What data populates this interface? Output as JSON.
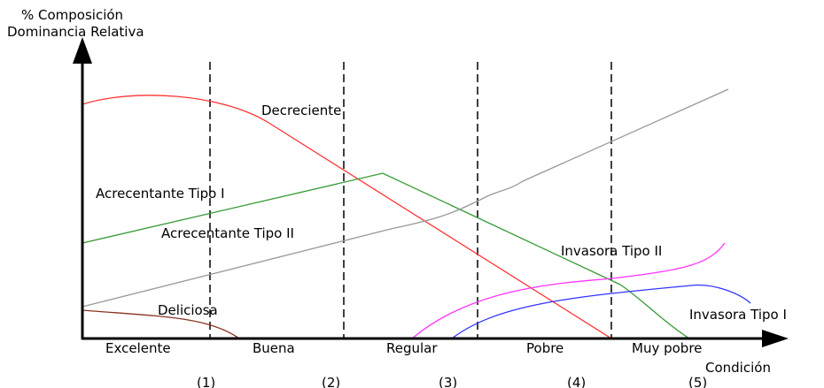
{
  "y_axis": {
    "title_line1": "% Composición",
    "title_line2": "Dominancia Relativa"
  },
  "x_axis": {
    "title": "Condición"
  },
  "categories": [
    "Excelente",
    "Buena",
    "Regular",
    "Pobre",
    "Muy pobre"
  ],
  "category_numbers": [
    "(1)",
    "(2)",
    "(3)",
    "(4)",
    "(5)"
  ],
  "curves": [
    {
      "key": "decreciente",
      "name": "Decreciente",
      "color": "#ff3333"
    },
    {
      "key": "acrecentante_1",
      "name": "Acrecentante Tipo I",
      "color": "#339933"
    },
    {
      "key": "acrecentante_2",
      "name": "Acrecentante Tipo II",
      "color": "#999999"
    },
    {
      "key": "invasora_2",
      "name": "Invasora Tipo II",
      "color": "#ff33ff"
    },
    {
      "key": "invasora_1",
      "name": "Invasora Tipo I",
      "color": "#3333ff"
    },
    {
      "key": "deliciosa",
      "name": "Deliciosa",
      "color": "#883322"
    }
  ]
}
